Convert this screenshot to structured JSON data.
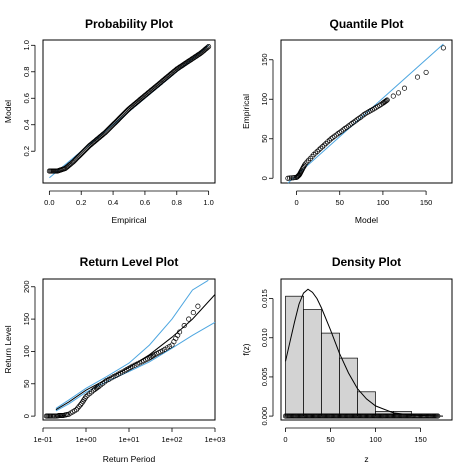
{
  "chart_data": [
    {
      "type": "scatter",
      "title": "Probability Plot",
      "xlabel": "Empirical",
      "ylabel": "Model",
      "xlim": [
        -0.04,
        1.04
      ],
      "ylim": [
        -0.04,
        1.04
      ],
      "xticks": [
        0.0,
        0.2,
        0.4,
        0.6,
        0.8,
        1.0
      ],
      "xtick_labels": [
        "0.0",
        "0.2",
        "0.4",
        "0.6",
        "0.8",
        "1.0"
      ],
      "yticks": [
        0.2,
        0.4,
        0.6,
        0.8,
        1.0
      ],
      "ytick_labels": [
        "0.2",
        "0.4",
        "0.6",
        "0.8",
        "1.0"
      ],
      "reference_line": {
        "color": "#4da6e0",
        "points": [
          [
            0,
            0
          ],
          [
            1,
            1
          ]
        ]
      },
      "points_curve": [
        [
          0.0,
          0.05
        ],
        [
          0.05,
          0.05
        ],
        [
          0.1,
          0.07
        ],
        [
          0.15,
          0.12
        ],
        [
          0.2,
          0.18
        ],
        [
          0.25,
          0.24
        ],
        [
          0.3,
          0.29
        ],
        [
          0.35,
          0.34
        ],
        [
          0.4,
          0.4
        ],
        [
          0.45,
          0.46
        ],
        [
          0.5,
          0.52
        ],
        [
          0.55,
          0.57
        ],
        [
          0.6,
          0.62
        ],
        [
          0.65,
          0.67
        ],
        [
          0.7,
          0.72
        ],
        [
          0.75,
          0.77
        ],
        [
          0.8,
          0.82
        ],
        [
          0.85,
          0.86
        ],
        [
          0.9,
          0.9
        ],
        [
          0.95,
          0.94
        ],
        [
          1.0,
          0.99
        ]
      ]
    },
    {
      "type": "scatter",
      "title": "Quantile Plot",
      "xlabel": "Model",
      "ylabel": "Empirical",
      "xlim": [
        -18,
        180
      ],
      "ylim": [
        -6,
        175
      ],
      "xticks": [
        0,
        50,
        100,
        150
      ],
      "xtick_labels": [
        "0",
        "50",
        "100",
        "150"
      ],
      "yticks": [
        0,
        50,
        100,
        150
      ],
      "ytick_labels": [
        "0",
        "50",
        "100",
        "150"
      ],
      "reference_line": {
        "color": "#4da6e0",
        "points": [
          [
            -10,
            -10
          ],
          [
            170,
            170
          ]
        ]
      },
      "points_curve": [
        [
          -10,
          0
        ],
        [
          0,
          1
        ],
        [
          3,
          4
        ],
        [
          6,
          10
        ],
        [
          10,
          18
        ],
        [
          20,
          30
        ],
        [
          30,
          40
        ],
        [
          40,
          50
        ],
        [
          50,
          58
        ],
        [
          60,
          66
        ],
        [
          70,
          74
        ],
        [
          80,
          82
        ],
        [
          90,
          88
        ],
        [
          100,
          95
        ],
        [
          105,
          99
        ]
      ],
      "outliers": [
        [
          112,
          104
        ],
        [
          118,
          108
        ],
        [
          125,
          114
        ],
        [
          140,
          128
        ],
        [
          150,
          134
        ],
        [
          170,
          165
        ]
      ]
    },
    {
      "type": "line",
      "title": "Return Level Plot",
      "xlabel": "Return Period",
      "ylabel": "Return Level",
      "x_scale": "log",
      "xlim": [
        0.1,
        1000
      ],
      "ylim": [
        -6,
        212
      ],
      "xticks": [
        0.1,
        1,
        10,
        100,
        1000
      ],
      "xtick_labels": [
        "1e-01",
        "1e+00",
        "1e+01",
        "1e+02",
        "1e+03"
      ],
      "yticks": [
        0,
        50,
        100,
        150,
        200
      ],
      "ytick_labels": [
        "0",
        "50",
        "100",
        "150",
        "200"
      ],
      "fitted_curve": [
        [
          0.2,
          10
        ],
        [
          0.4,
          22
        ],
        [
          1,
          40
        ],
        [
          3,
          57
        ],
        [
          10,
          75
        ],
        [
          30,
          95
        ],
        [
          100,
          122
        ],
        [
          300,
          150
        ],
        [
          1000,
          188
        ]
      ],
      "upper_ci": [
        [
          0.2,
          12
        ],
        [
          0.4,
          25
        ],
        [
          1,
          43
        ],
        [
          3,
          61
        ],
        [
          10,
          82
        ],
        [
          30,
          110
        ],
        [
          100,
          150
        ],
        [
          300,
          195
        ],
        [
          700,
          210
        ]
      ],
      "lower_ci": [
        [
          0.2,
          8
        ],
        [
          0.4,
          19
        ],
        [
          1,
          37
        ],
        [
          3,
          53
        ],
        [
          10,
          69
        ],
        [
          30,
          84
        ],
        [
          100,
          105
        ],
        [
          300,
          125
        ],
        [
          1000,
          145
        ]
      ],
      "observed": [
        [
          0.12,
          0
        ],
        [
          0.15,
          0
        ],
        [
          0.2,
          0
        ],
        [
          0.25,
          1
        ],
        [
          0.3,
          1
        ],
        [
          0.4,
          3
        ],
        [
          0.6,
          10
        ],
        [
          0.8,
          20
        ],
        [
          1,
          30
        ],
        [
          1.5,
          40
        ],
        [
          2,
          46
        ],
        [
          3,
          55
        ],
        [
          5,
          63
        ],
        [
          8,
          70
        ],
        [
          12,
          77
        ],
        [
          20,
          84
        ],
        [
          30,
          90
        ],
        [
          40,
          95
        ],
        [
          60,
          101
        ],
        [
          100,
          110
        ],
        [
          150,
          130
        ],
        [
          400,
          170
        ]
      ],
      "ci_color": "#4da6e0"
    },
    {
      "type": "bar",
      "title": "Density Plot",
      "xlabel": "z",
      "ylabel": "f(z)",
      "xlim": [
        -5,
        185
      ],
      "ylim": [
        -0.0005,
        0.0175
      ],
      "xticks": [
        0,
        50,
        100,
        150
      ],
      "xtick_labels": [
        "0",
        "50",
        "100",
        "150"
      ],
      "yticks": [
        0.0,
        0.005,
        0.01,
        0.015
      ],
      "ytick_labels": [
        "0.000",
        "0.005",
        "0.010",
        "0.015"
      ],
      "bins": [
        0,
        20,
        40,
        60,
        80,
        100,
        120,
        140
      ],
      "bar_heights": [
        0.0153,
        0.0136,
        0.0106,
        0.0074,
        0.0031,
        0.0006,
        0.0006
      ],
      "bar_color": "#d3d3d3",
      "density_curve": [
        [
          0,
          0.007
        ],
        [
          5,
          0.0095
        ],
        [
          10,
          0.012
        ],
        [
          15,
          0.0143
        ],
        [
          20,
          0.0157
        ],
        [
          25,
          0.0162
        ],
        [
          30,
          0.0158
        ],
        [
          35,
          0.015
        ],
        [
          40,
          0.0138
        ],
        [
          50,
          0.011
        ],
        [
          60,
          0.008
        ],
        [
          70,
          0.0055
        ],
        [
          80,
          0.0035
        ],
        [
          90,
          0.0022
        ],
        [
          100,
          0.0013
        ],
        [
          120,
          0.0004
        ],
        [
          140,
          0.00012
        ],
        [
          160,
          3e-05
        ],
        [
          175,
          0.0
        ]
      ]
    }
  ]
}
